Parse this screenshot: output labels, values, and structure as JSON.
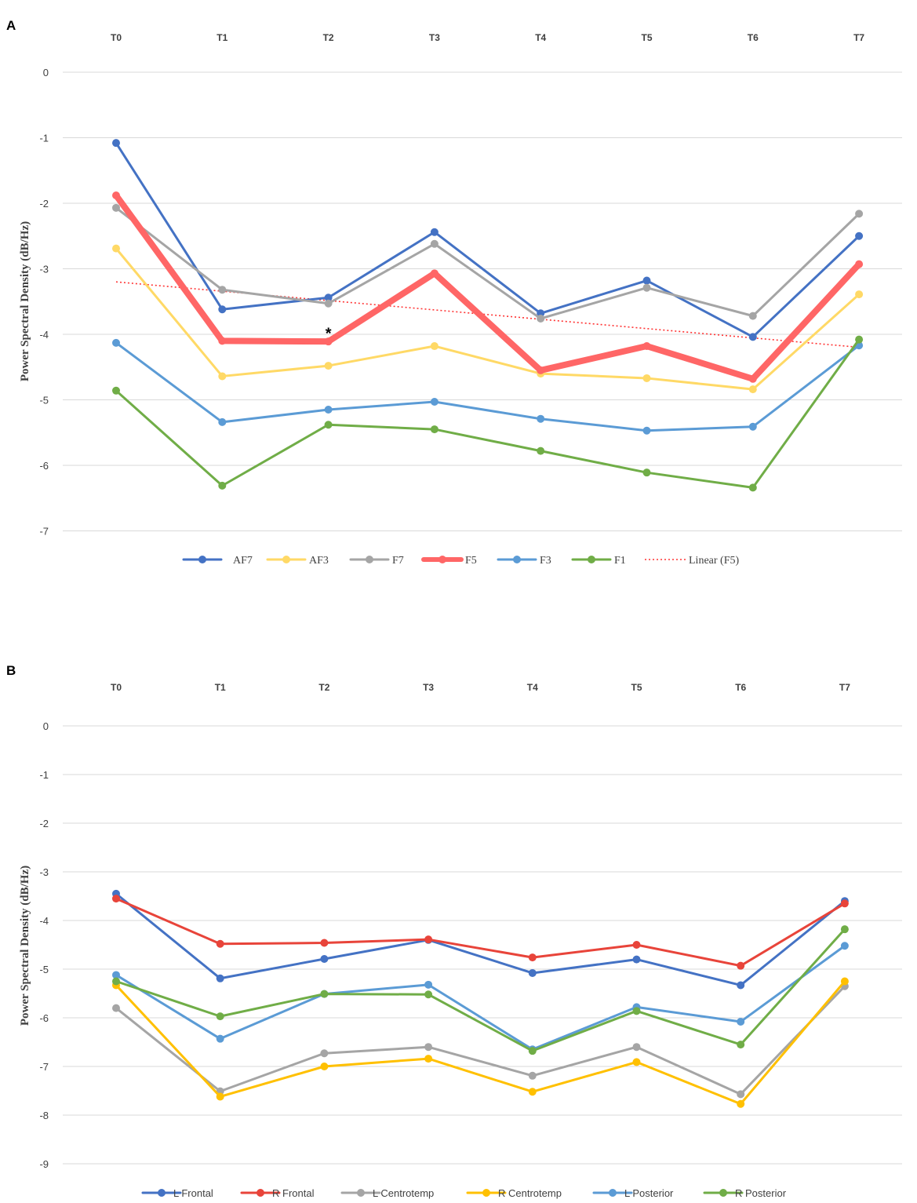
{
  "chart_data": [
    {
      "panel": "A",
      "type": "line",
      "title": "",
      "xlabel": "",
      "ylabel": "Power Spectral Density (dB/Hz)",
      "categories": [
        "T0",
        "T1",
        "T2",
        "T3",
        "T4",
        "T5",
        "T6",
        "T7"
      ],
      "yticks": [
        "0",
        "-1",
        "-2",
        "-3",
        "-4",
        "-5",
        "-6",
        "-7"
      ],
      "ylim": [
        -7,
        0
      ],
      "grid": true,
      "legend_position": "bottom",
      "series": [
        {
          "name": "AF7",
          "color": "#4472c4",
          "values": [
            -1.08,
            -3.62,
            -3.44,
            -2.44,
            -3.68,
            -3.18,
            -4.04,
            -2.5
          ]
        },
        {
          "name": "AF3",
          "color": "#ffd966",
          "values": [
            -2.69,
            -4.64,
            -4.48,
            -4.18,
            -4.6,
            -4.67,
            -4.84,
            -3.39
          ]
        },
        {
          "name": "F7",
          "color": "#a5a5a5",
          "values": [
            -2.07,
            -3.32,
            -3.53,
            -2.62,
            -3.76,
            -3.29,
            -3.72,
            -2.16
          ]
        },
        {
          "name": "F5",
          "color": "#ff6666",
          "values": [
            -1.88,
            -4.1,
            -4.11,
            -3.07,
            -4.55,
            -4.18,
            -4.68,
            -2.93
          ]
        },
        {
          "name": "F3",
          "color": "#5b9bd5",
          "values": [
            -4.13,
            -5.34,
            -5.15,
            -5.03,
            -5.29,
            -5.47,
            -5.41,
            -4.17
          ]
        },
        {
          "name": "F1",
          "color": "#70ad47",
          "values": [
            -4.86,
            -6.31,
            -5.38,
            -5.45,
            -5.78,
            -6.11,
            -6.34,
            -4.08
          ]
        }
      ],
      "trendline": {
        "name": "Linear (F5)",
        "color": "#ff3333",
        "start": -3.2,
        "end": -4.2
      },
      "annotations": [
        {
          "text": "*",
          "category": "T2",
          "value": -3.9
        }
      ]
    },
    {
      "panel": "B",
      "type": "line",
      "title": "",
      "xlabel": "",
      "ylabel": "Power Spectral Density (dB/Hz)",
      "categories": [
        "T0",
        "T1",
        "T2",
        "T3",
        "T4",
        "T5",
        "T6",
        "T7"
      ],
      "yticks": [
        "0",
        "-1",
        "-2",
        "-3",
        "-4",
        "-5",
        "-6",
        "-7",
        "-8",
        "-9"
      ],
      "ylim": [
        -9,
        0
      ],
      "grid": true,
      "legend_position": "bottom",
      "series": [
        {
          "name": "L Frontal",
          "color": "#4472c4",
          "values": [
            -3.45,
            -5.19,
            -4.79,
            -4.4,
            -5.08,
            -4.8,
            -5.33,
            -3.6
          ]
        },
        {
          "name": "R Frontal",
          "color": "#e8443a",
          "values": [
            -3.55,
            -4.48,
            -4.46,
            -4.39,
            -4.76,
            -4.5,
            -4.93,
            -3.65
          ]
        },
        {
          "name": "L Centrotemp",
          "color": "#a5a5a5",
          "values": [
            -5.8,
            -7.51,
            -6.73,
            -6.6,
            -7.19,
            -6.6,
            -7.57,
            -5.35
          ]
        },
        {
          "name": "R Centrotemp",
          "color": "#ffc000",
          "values": [
            -5.33,
            -7.62,
            -7.0,
            -6.84,
            -7.52,
            -6.91,
            -7.77,
            -5.25
          ]
        },
        {
          "name": "L Posterior",
          "color": "#5b9bd5",
          "values": [
            -5.12,
            -6.43,
            -5.51,
            -5.32,
            -6.65,
            -5.78,
            -6.08,
            -4.52
          ]
        },
        {
          "name": "R Posterior",
          "color": "#70ad47",
          "values": [
            -5.25,
            -5.97,
            -5.51,
            -5.52,
            -6.68,
            -5.86,
            -6.55,
            -4.18
          ]
        }
      ]
    }
  ]
}
